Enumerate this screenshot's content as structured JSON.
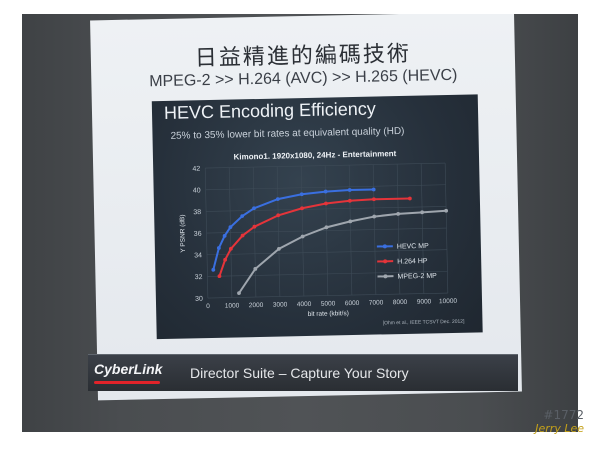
{
  "slide": {
    "title_cn": "日益精進的編碼技術",
    "title_en": "MPEG-2 >> H.264 (AVC) >> H.265 (HEVC)",
    "chart_title": "HEVC Encoding Efficiency",
    "chart_subtitle": "25% to 35% lower bit rates at equivalent quality (HD)"
  },
  "footer": {
    "logo": "CyberLink",
    "text": "Director Suite – Capture Your Story"
  },
  "watermark": {
    "code": "#1772",
    "name": "Jerry Lee"
  },
  "chart_data": {
    "type": "line",
    "title": "Kimono1. 1920x1080, 24Hz - Entertainment",
    "xlabel": "bit rate (kbit/s)",
    "ylabel": "Y PSNR (dB)",
    "xlim": [
      0,
      10000
    ],
    "ylim": [
      30,
      42
    ],
    "x_ticks": [
      0,
      1000,
      2000,
      3000,
      4000,
      5000,
      6000,
      7000,
      8000,
      9000,
      10000
    ],
    "y_ticks": [
      30,
      32,
      34,
      36,
      38,
      40,
      42
    ],
    "citation": "[Ohm et al., IEEE TCSVT Dec. 2012]",
    "legend_position": "bottom-right",
    "series": [
      {
        "name": "HEVC MP",
        "color": "#3a6fe0",
        "points": [
          [
            250,
            32.6
          ],
          [
            500,
            34.6
          ],
          [
            750,
            35.7
          ],
          [
            1000,
            36.5
          ],
          [
            1500,
            37.5
          ],
          [
            2000,
            38.2
          ],
          [
            3000,
            39.0
          ],
          [
            4000,
            39.4
          ],
          [
            5000,
            39.6
          ],
          [
            6000,
            39.7
          ],
          [
            7000,
            39.7
          ]
        ]
      },
      {
        "name": "H.264 HP",
        "color": "#e5343a",
        "points": [
          [
            500,
            32.0
          ],
          [
            750,
            33.5
          ],
          [
            1000,
            34.5
          ],
          [
            1500,
            35.7
          ],
          [
            2000,
            36.5
          ],
          [
            3000,
            37.5
          ],
          [
            4000,
            38.1
          ],
          [
            5000,
            38.5
          ],
          [
            6000,
            38.7
          ],
          [
            7000,
            38.8
          ],
          [
            8500,
            38.8
          ]
        ]
      },
      {
        "name": "MPEG-2 MP",
        "color": "#9fa6ae",
        "points": [
          [
            1300,
            30.4
          ],
          [
            2000,
            32.6
          ],
          [
            3000,
            34.4
          ],
          [
            4000,
            35.5
          ],
          [
            5000,
            36.3
          ],
          [
            6000,
            36.8
          ],
          [
            7000,
            37.2
          ],
          [
            8000,
            37.4
          ],
          [
            9000,
            37.5
          ],
          [
            10000,
            37.6
          ]
        ]
      }
    ]
  }
}
